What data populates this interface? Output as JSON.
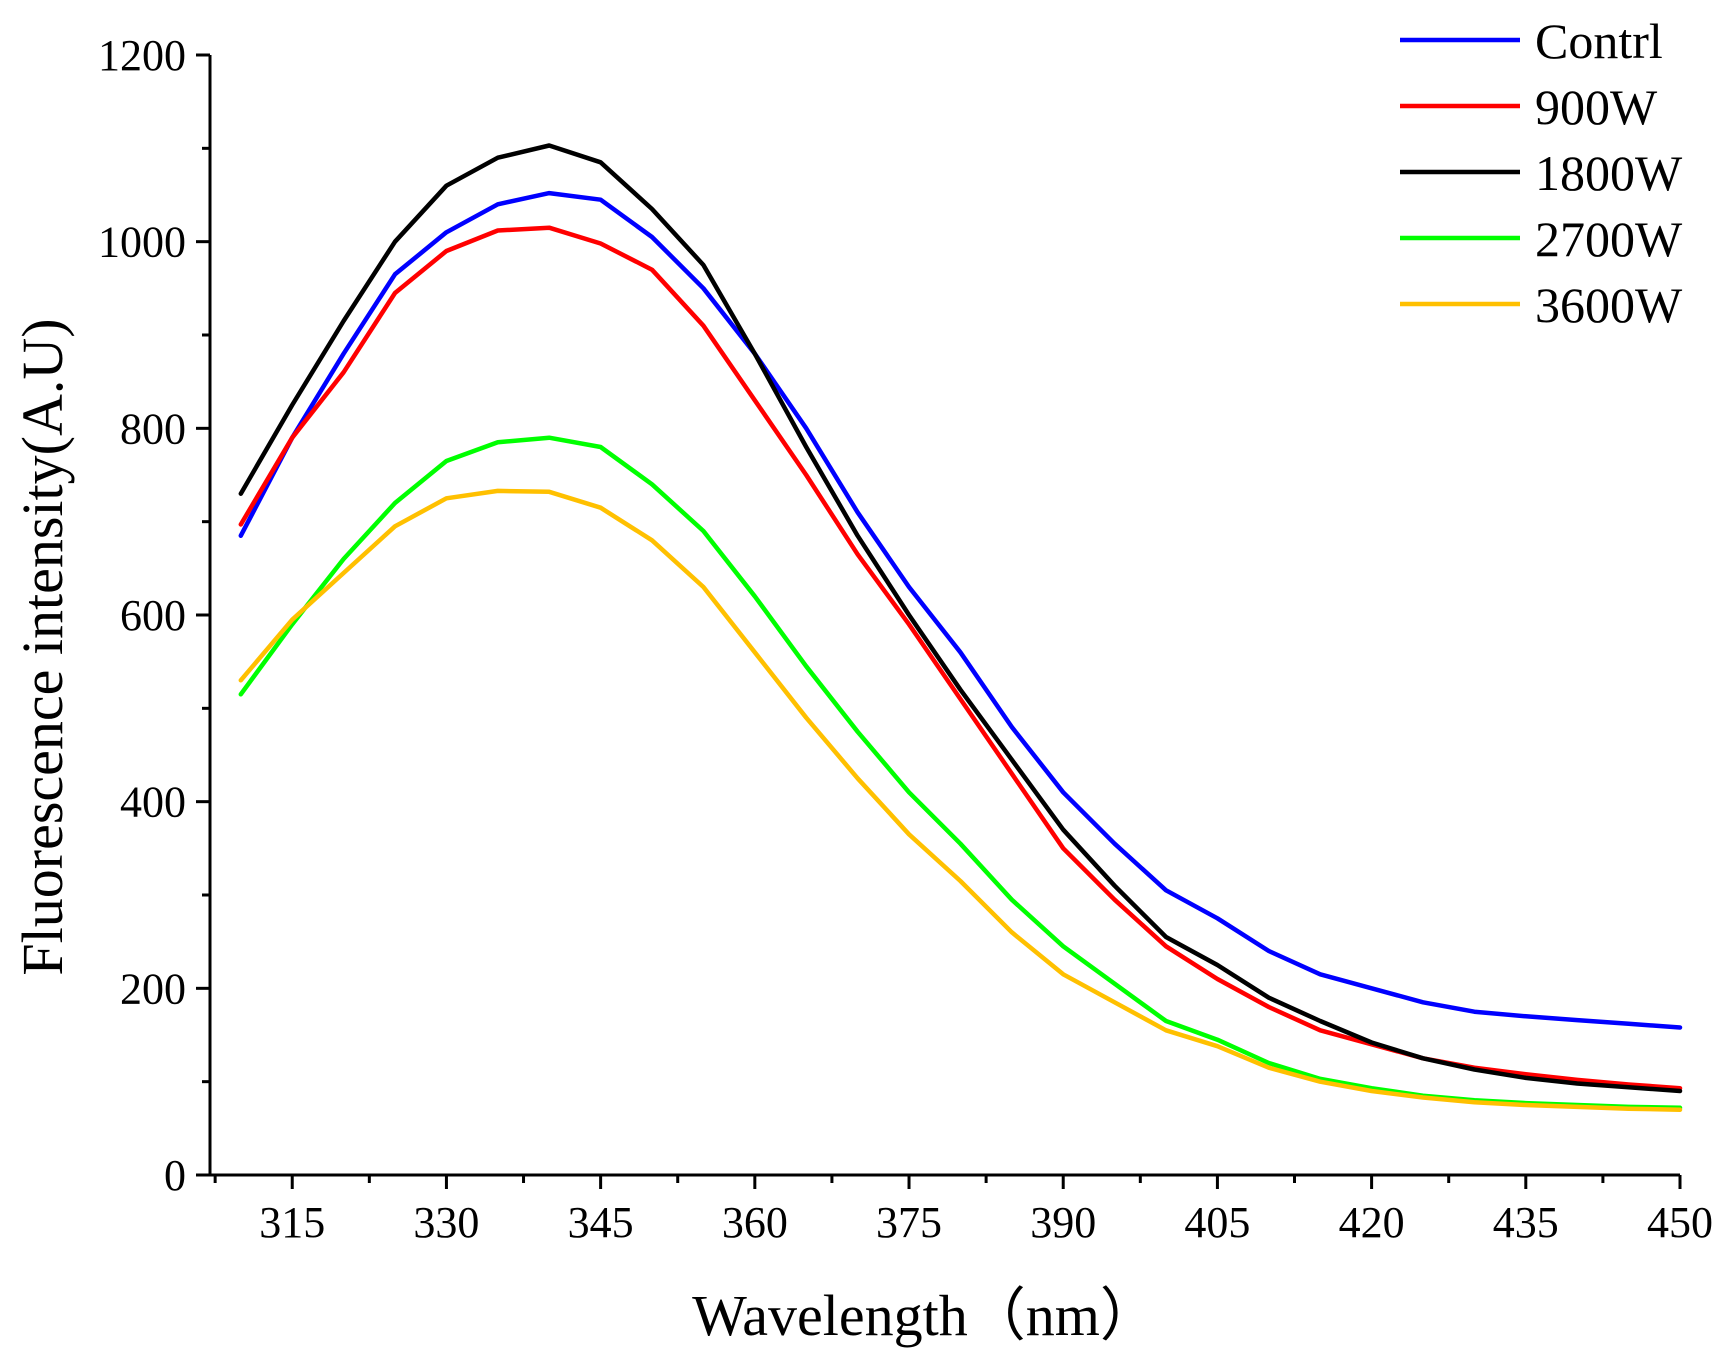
{
  "chart_data": {
    "type": "line",
    "title": "",
    "xlabel": "Wavelength（nm）",
    "ylabel": "Fluorescence intensity(A.U)",
    "xlim": [
      307,
      450
    ],
    "ylim": [
      0,
      1200
    ],
    "xticks": [
      315,
      330,
      345,
      360,
      375,
      390,
      405,
      420,
      435,
      450
    ],
    "yticks": [
      0,
      200,
      400,
      600,
      800,
      1000,
      1200
    ],
    "grid": false,
    "legend_position": "top-right",
    "x": [
      310,
      315,
      320,
      325,
      330,
      335,
      340,
      345,
      350,
      355,
      360,
      365,
      370,
      375,
      380,
      385,
      390,
      395,
      400,
      405,
      410,
      415,
      420,
      425,
      430,
      435,
      440,
      445,
      450
    ],
    "series": [
      {
        "name": "Contrl",
        "color": "#0000ff",
        "values": [
          685,
          790,
          880,
          965,
          1010,
          1040,
          1052,
          1045,
          1005,
          950,
          880,
          800,
          710,
          630,
          560,
          480,
          410,
          355,
          305,
          275,
          240,
          215,
          200,
          185,
          175,
          170,
          166,
          162,
          158
        ]
      },
      {
        "name": "900W",
        "color": "#ff0000",
        "values": [
          697,
          790,
          860,
          945,
          990,
          1012,
          1015,
          998,
          970,
          910,
          830,
          750,
          665,
          590,
          510,
          430,
          350,
          295,
          245,
          210,
          180,
          155,
          140,
          125,
          115,
          108,
          102,
          97,
          93
        ]
      },
      {
        "name": "1800W",
        "color": "#000000",
        "values": [
          730,
          825,
          915,
          1000,
          1060,
          1090,
          1103,
          1085,
          1035,
          975,
          880,
          780,
          685,
          600,
          520,
          445,
          370,
          310,
          255,
          225,
          190,
          165,
          142,
          125,
          113,
          104,
          98,
          94,
          90
        ]
      },
      {
        "name": "2700W",
        "color": "#00ff00",
        "values": [
          515,
          590,
          660,
          720,
          765,
          785,
          790,
          780,
          740,
          690,
          620,
          545,
          475,
          410,
          355,
          295,
          245,
          205,
          165,
          145,
          120,
          103,
          93,
          85,
          80,
          77,
          75,
          73,
          72
        ]
      },
      {
        "name": "3600W",
        "color": "#ffc000",
        "values": [
          530,
          595,
          645,
          695,
          725,
          733,
          732,
          715,
          680,
          630,
          560,
          490,
          425,
          365,
          315,
          260,
          215,
          185,
          155,
          138,
          115,
          100,
          90,
          83,
          78,
          75,
          73,
          71,
          70
        ]
      }
    ]
  }
}
